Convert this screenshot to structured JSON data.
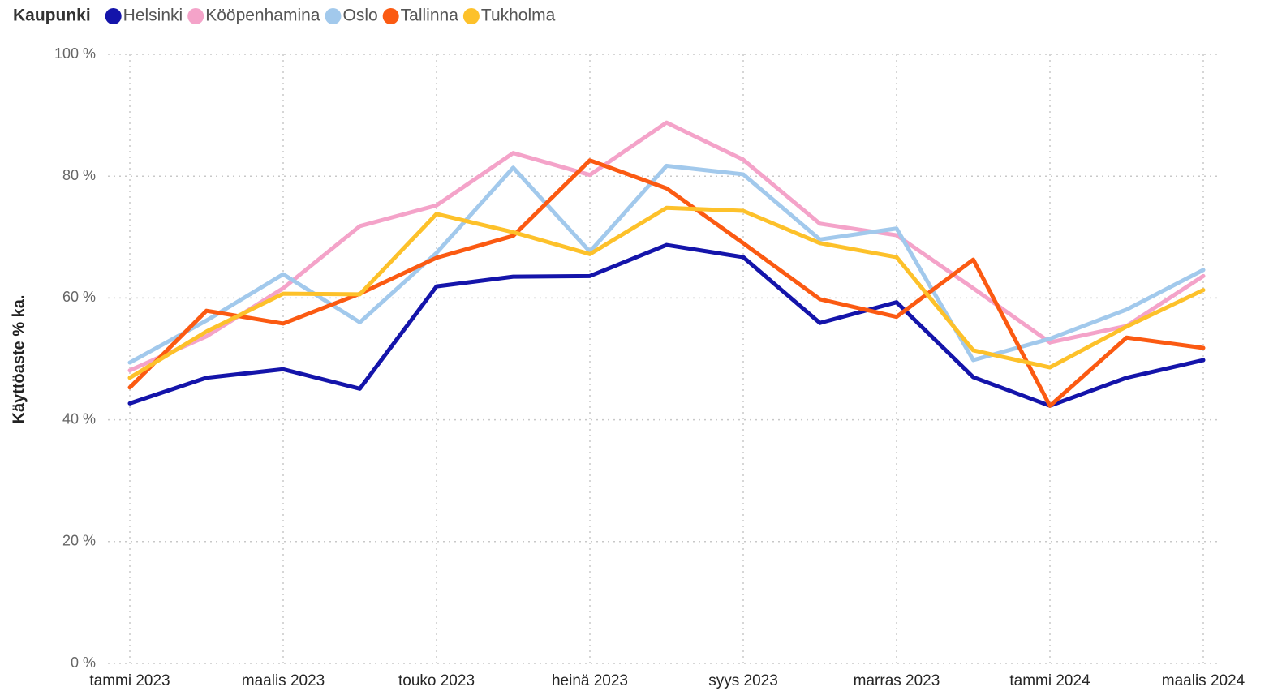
{
  "chart_data": {
    "type": "line",
    "legend_title": "Kaupunki",
    "y_label": "Käyttöaste % ka.",
    "categories": [
      "tammi 2023",
      null,
      "maalis 2023",
      null,
      "touko 2023",
      null,
      "heinä 2023",
      null,
      "syys 2023",
      null,
      "marras 2023",
      null,
      "tammi 2024",
      null,
      "maalis 2024"
    ],
    "series": [
      {
        "name": "Helsinki",
        "color": "#1414aa",
        "values": [
          42.7,
          46.9,
          48.3,
          45.1,
          61.9,
          63.5,
          63.6,
          68.7,
          66.7,
          55.9,
          59.3,
          47.0,
          42.3,
          46.9,
          49.8
        ]
      },
      {
        "name": "Kööpenhamina",
        "color": "#f4a3c9",
        "values": [
          48.1,
          53.7,
          61.6,
          71.8,
          75.2,
          83.8,
          80.2,
          88.8,
          82.7,
          72.2,
          70.3,
          61.6,
          52.7,
          55.4,
          63.6
        ]
      },
      {
        "name": "Oslo",
        "color": "#a2c9ec",
        "values": [
          49.4,
          56.3,
          63.9,
          56.0,
          67.4,
          81.4,
          67.6,
          81.7,
          80.3,
          69.6,
          71.4,
          49.8,
          53.3,
          58.1,
          64.6
        ]
      },
      {
        "name": "Tallinna",
        "color": "#fb5a12",
        "values": [
          45.3,
          57.9,
          55.8,
          60.7,
          66.6,
          70.2,
          82.6,
          78.0,
          69.0,
          59.8,
          56.9,
          66.3,
          42.3,
          53.5,
          51.8
        ]
      },
      {
        "name": "Tukholma",
        "color": "#fdc12a",
        "values": [
          46.9,
          54.5,
          60.7,
          60.6,
          73.8,
          70.8,
          67.2,
          74.8,
          74.3,
          69.0,
          66.7,
          51.4,
          48.6,
          55.3,
          61.3
        ]
      }
    ],
    "ylim": [
      0,
      100
    ],
    "yticks": [
      {
        "value": 0,
        "label": "0 %"
      },
      {
        "value": 20,
        "label": "20 %"
      },
      {
        "value": 40,
        "label": "40 %"
      },
      {
        "value": 60,
        "label": "60 %"
      },
      {
        "value": 80,
        "label": "80 %"
      },
      {
        "value": 100,
        "label": "100 %"
      }
    ],
    "grid": true,
    "legend": "top-left"
  }
}
